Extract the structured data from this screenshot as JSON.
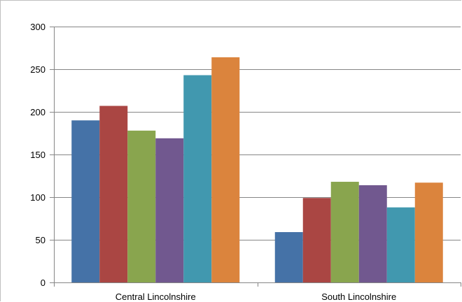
{
  "chart_data": {
    "type": "bar",
    "title": "",
    "xlabel": "",
    "ylabel": "",
    "ylim": [
      0,
      300
    ],
    "yticks": [
      0,
      50,
      100,
      150,
      200,
      250,
      300
    ],
    "grid": true,
    "categories": [
      "Central Lincolnshire",
      "South Lincolnshire"
    ],
    "series": [
      {
        "values": [
          190,
          59
        ],
        "color": "#4572A7"
      },
      {
        "values": [
          207,
          99
        ],
        "color": "#AA4643"
      },
      {
        "values": [
          178,
          118
        ],
        "color": "#89A54E"
      },
      {
        "values": [
          169,
          114
        ],
        "color": "#71588F"
      },
      {
        "values": [
          243,
          88
        ],
        "color": "#4198AF"
      },
      {
        "values": [
          264,
          117
        ],
        "color": "#DB843D"
      }
    ]
  }
}
